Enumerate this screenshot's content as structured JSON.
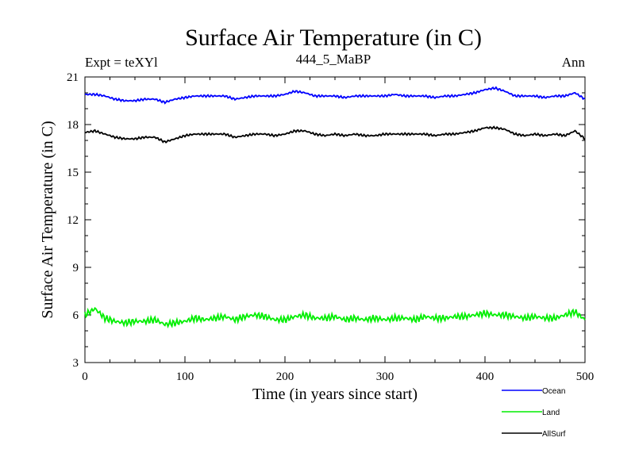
{
  "chart_data": {
    "type": "line",
    "title": "Surface Air Temperature (in C)",
    "left_label": "Expt = teXYl",
    "subtitle": "444_5_MaBP",
    "right_label": "Ann",
    "xlabel": "Time (in years since start)",
    "ylabel": "Surface Air Temperature (in C)",
    "xlim": [
      0,
      500
    ],
    "ylim": [
      3,
      21
    ],
    "xticks": [
      0,
      100,
      200,
      300,
      400,
      500
    ],
    "yticks": [
      3,
      6,
      9,
      12,
      15,
      18,
      21
    ],
    "grid": false,
    "legend_position": "below-right",
    "series": [
      {
        "name": "Ocean",
        "color": "#0000ff",
        "x": [
          0,
          10,
          20,
          30,
          40,
          50,
          60,
          70,
          80,
          90,
          100,
          110,
          120,
          130,
          140,
          150,
          160,
          170,
          180,
          190,
          200,
          210,
          220,
          230,
          240,
          250,
          260,
          270,
          280,
          290,
          300,
          310,
          320,
          330,
          340,
          350,
          360,
          370,
          380,
          390,
          400,
          410,
          420,
          430,
          440,
          450,
          460,
          470,
          480,
          490,
          500
        ],
        "values": [
          19.9,
          19.9,
          19.8,
          19.6,
          19.5,
          19.5,
          19.6,
          19.6,
          19.4,
          19.6,
          19.7,
          19.8,
          19.8,
          19.8,
          19.8,
          19.6,
          19.7,
          19.8,
          19.8,
          19.8,
          19.9,
          20.1,
          20.0,
          19.8,
          19.8,
          19.8,
          19.7,
          19.8,
          19.8,
          19.8,
          19.8,
          19.9,
          19.8,
          19.8,
          19.8,
          19.7,
          19.8,
          19.8,
          19.9,
          20.0,
          20.2,
          20.3,
          20.1,
          19.8,
          19.8,
          19.8,
          19.7,
          19.8,
          19.8,
          20.0,
          19.6
        ]
      },
      {
        "name": "Land",
        "color": "#00ee00",
        "x": [
          0,
          10,
          20,
          30,
          40,
          50,
          60,
          70,
          80,
          90,
          100,
          110,
          120,
          130,
          140,
          150,
          160,
          170,
          180,
          190,
          200,
          210,
          220,
          230,
          240,
          250,
          260,
          270,
          280,
          290,
          300,
          310,
          320,
          330,
          340,
          350,
          360,
          370,
          380,
          390,
          400,
          410,
          420,
          430,
          440,
          450,
          460,
          470,
          480,
          490,
          500
        ],
        "values": [
          6.0,
          6.4,
          5.8,
          5.6,
          5.5,
          5.6,
          5.6,
          5.7,
          5.4,
          5.5,
          5.6,
          5.8,
          5.7,
          5.8,
          5.9,
          5.7,
          5.9,
          6.0,
          5.9,
          5.7,
          5.7,
          5.9,
          6.0,
          5.8,
          5.8,
          5.9,
          5.7,
          5.8,
          5.7,
          5.8,
          5.7,
          5.8,
          5.8,
          5.7,
          5.9,
          5.8,
          5.8,
          5.9,
          5.9,
          6.0,
          6.1,
          6.0,
          6.0,
          5.9,
          5.8,
          5.9,
          5.8,
          5.8,
          6.0,
          6.2,
          5.7
        ]
      },
      {
        "name": "AllSurf",
        "color": "#000000",
        "x": [
          0,
          10,
          20,
          30,
          40,
          50,
          60,
          70,
          80,
          90,
          100,
          110,
          120,
          130,
          140,
          150,
          160,
          170,
          180,
          190,
          200,
          210,
          220,
          230,
          240,
          250,
          260,
          270,
          280,
          290,
          300,
          310,
          320,
          330,
          340,
          350,
          360,
          370,
          380,
          390,
          400,
          410,
          420,
          430,
          440,
          450,
          460,
          470,
          480,
          490,
          500
        ],
        "values": [
          17.5,
          17.6,
          17.4,
          17.2,
          17.1,
          17.1,
          17.2,
          17.2,
          16.9,
          17.1,
          17.3,
          17.4,
          17.4,
          17.4,
          17.4,
          17.2,
          17.3,
          17.4,
          17.4,
          17.3,
          17.4,
          17.6,
          17.6,
          17.4,
          17.3,
          17.4,
          17.3,
          17.4,
          17.3,
          17.3,
          17.4,
          17.4,
          17.4,
          17.4,
          17.4,
          17.3,
          17.4,
          17.4,
          17.5,
          17.6,
          17.8,
          17.8,
          17.7,
          17.4,
          17.3,
          17.4,
          17.3,
          17.4,
          17.3,
          17.6,
          17.1
        ]
      }
    ]
  }
}
